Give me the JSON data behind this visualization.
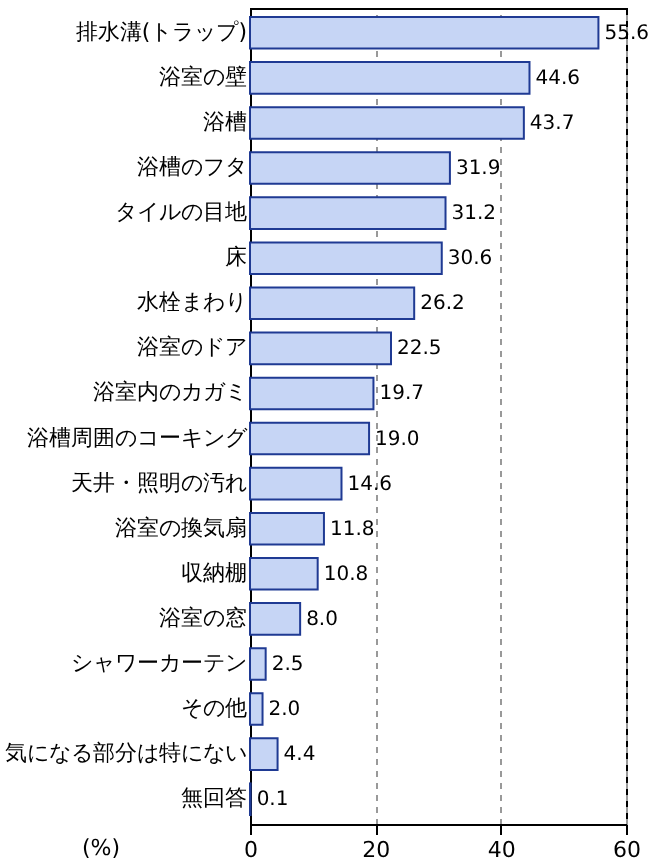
{
  "chart_data": {
    "type": "bar",
    "orientation": "horizontal",
    "xlabel": "(%)",
    "categories": [
      "排水溝(トラップ)",
      "浴室の壁",
      "浴槽",
      "浴槽のフタ",
      "タイルの目地",
      "床",
      "水栓まわり",
      "浴室のドア",
      "浴室内のカガミ",
      "浴槽周囲のコーキング",
      "天井・照明の汚れ",
      "浴室の換気扇",
      "収納棚",
      "浴室の窓",
      "シャワーカーテン",
      "その他",
      "気になる部分は特にない",
      "無回答"
    ],
    "values": [
      55.6,
      44.6,
      43.7,
      31.9,
      31.2,
      30.6,
      26.2,
      22.5,
      19.7,
      19.0,
      14.6,
      11.8,
      10.8,
      8.0,
      2.5,
      2.0,
      4.4,
      0.1
    ],
    "color": "#c6d5f5",
    "value_labels": [
      "55.6",
      "44.6",
      "43.7",
      "31.9",
      "31.2",
      "30.6",
      "26.2",
      "22.5",
      "19.7",
      "19.0",
      "14.6",
      "11.8",
      "10.8",
      "8.0",
      "2.5",
      "2.0",
      "4.4",
      "0.1"
    ],
    "xlim": [
      0,
      60
    ],
    "xticks": [
      0,
      20,
      40,
      60
    ],
    "grid": "x"
  }
}
